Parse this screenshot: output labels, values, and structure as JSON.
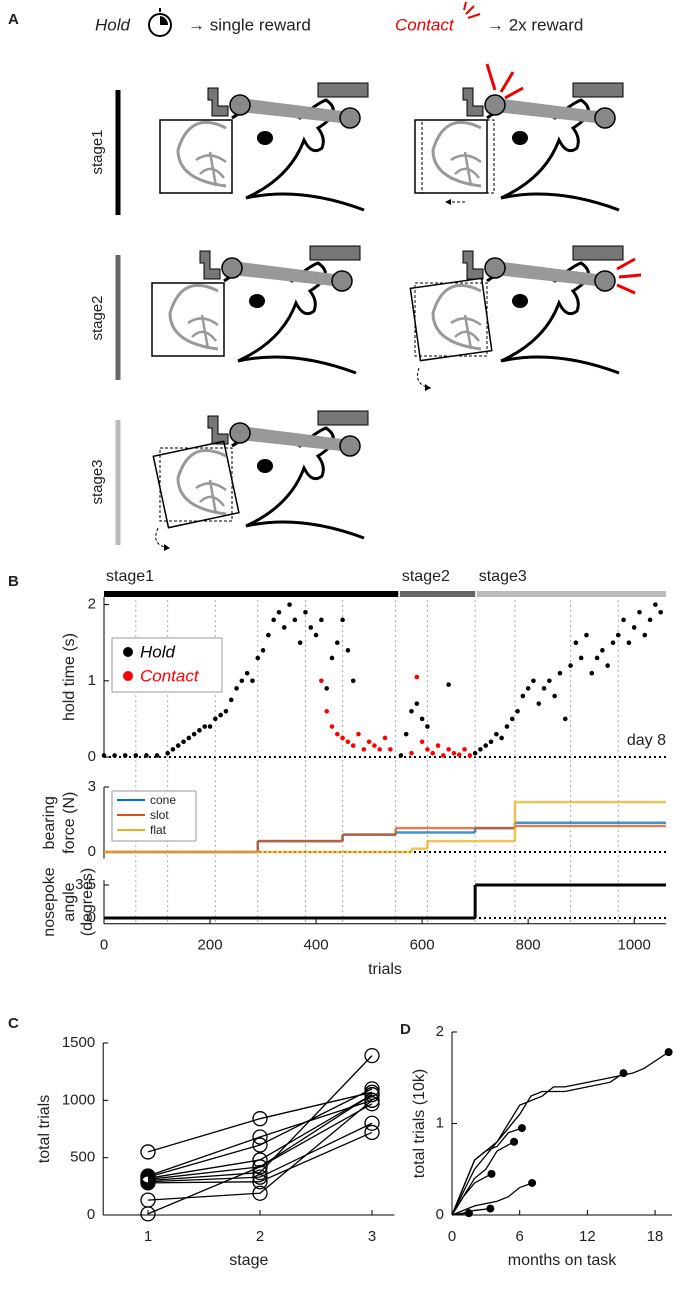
{
  "panel_labels": [
    "A",
    "B",
    "C",
    "D"
  ],
  "panel_a": {
    "hold_label": "Hold",
    "hold_text": "→ single reward",
    "contact_label": "Contact",
    "contact_text": "→ 2x reward",
    "stages": [
      "stage1",
      "stage2",
      "stage3"
    ]
  },
  "chart_data": [
    {
      "type": "scatter",
      "ylabel": [
        "hold time (s)"
      ],
      "xlim": [
        0,
        1060
      ],
      "ylim": [
        0,
        2.1
      ],
      "yticks": [
        0,
        1,
        2
      ],
      "annotation": "day 8",
      "stages": [
        {
          "name": "stage1",
          "start": 0,
          "end": 555,
          "color": "#000000"
        },
        {
          "name": "stage2",
          "start": 558,
          "end": 700,
          "color": "#666666"
        },
        {
          "name": "stage3",
          "start": 703,
          "end": 1060,
          "color": "#bbbbbb"
        }
      ],
      "vlines": [
        60,
        120,
        210,
        290,
        380,
        450,
        550,
        610,
        700,
        775,
        880,
        970
      ],
      "series": [
        {
          "name": "Hold",
          "color": "#000000",
          "x": [
            0,
            20,
            40,
            60,
            80,
            100,
            120,
            130,
            140,
            150,
            160,
            170,
            180,
            190,
            200,
            210,
            220,
            230,
            240,
            250,
            260,
            270,
            280,
            290,
            300,
            310,
            320,
            330,
            340,
            350,
            360,
            370,
            380,
            390,
            400,
            410,
            420,
            430,
            440,
            450,
            460,
            470,
            560,
            570,
            580,
            590,
            600,
            610,
            650,
            700,
            710,
            720,
            730,
            740,
            750,
            760,
            770,
            780,
            790,
            800,
            810,
            820,
            830,
            840,
            850,
            860,
            870,
            880,
            890,
            900,
            910,
            920,
            930,
            940,
            950,
            960,
            970,
            980,
            990,
            1000,
            1010,
            1020,
            1030,
            1040,
            1050
          ],
          "values": [
            0.02,
            0.02,
            0.02,
            0.02,
            0.02,
            0.02,
            0.05,
            0.1,
            0.15,
            0.2,
            0.25,
            0.3,
            0.35,
            0.4,
            0.4,
            0.5,
            0.55,
            0.6,
            0.75,
            0.9,
            1.0,
            1.1,
            1.0,
            1.3,
            1.4,
            1.6,
            1.8,
            1.9,
            1.7,
            2.0,
            1.8,
            1.5,
            1.9,
            1.7,
            1.6,
            1.8,
            0.9,
            1.3,
            1.5,
            1.8,
            1.4,
            1.0,
            0.02,
            0.3,
            0.6,
            0.7,
            0.5,
            0.4,
            0.95,
            0.05,
            0.1,
            0.15,
            0.2,
            0.3,
            0.25,
            0.4,
            0.5,
            0.6,
            0.8,
            0.9,
            1.0,
            0.7,
            0.9,
            1.0,
            0.8,
            1.1,
            0.5,
            1.2,
            1.5,
            1.3,
            1.6,
            1.1,
            1.3,
            1.4,
            1.2,
            1.5,
            1.6,
            1.8,
            1.5,
            1.7,
            1.9,
            1.6,
            1.8,
            2.0,
            1.9
          ]
        },
        {
          "name": "Contact",
          "color": "#ff0000",
          "x": [
            410,
            420,
            430,
            440,
            450,
            460,
            470,
            480,
            490,
            500,
            510,
            520,
            530,
            540,
            580,
            590,
            600,
            610,
            620,
            630,
            640,
            650,
            660,
            670,
            680,
            690
          ],
          "values": [
            1.0,
            0.6,
            0.4,
            0.3,
            0.25,
            0.2,
            0.15,
            0.3,
            0.1,
            0.2,
            0.15,
            0.1,
            0.25,
            0.1,
            0.05,
            1.05,
            0.2,
            0.1,
            0.05,
            0.15,
            0.02,
            0.1,
            0.05,
            0.03,
            0.1,
            0.02
          ]
        }
      ]
    },
    {
      "type": "step",
      "ylabel": [
        "bearing",
        "force (N)"
      ],
      "xlim": [
        0,
        1060
      ],
      "ylim": [
        -0.3,
        3
      ],
      "yticks": [
        0,
        3
      ],
      "series": [
        {
          "name": "cone",
          "color": "#0072bd",
          "x": [
            0,
            290,
            450,
            550,
            700,
            775,
            1060
          ],
          "values": [
            0,
            0.5,
            0.8,
            0.9,
            1.1,
            1.35,
            1.35
          ]
        },
        {
          "name": "slot",
          "color": "#d95319",
          "x": [
            0,
            290,
            450,
            550,
            700,
            775,
            1060
          ],
          "values": [
            0,
            0.5,
            0.8,
            1.1,
            1.1,
            1.2,
            1.2
          ]
        },
        {
          "name": "flat",
          "color": "#edb120",
          "x": [
            0,
            580,
            610,
            700,
            775,
            1060
          ],
          "values": [
            0,
            0.15,
            0.5,
            0.5,
            2.3,
            2.3
          ]
        }
      ]
    },
    {
      "type": "step",
      "ylabel": [
        "nosepoke",
        "angle",
        "(degrees)"
      ],
      "xlabel": "trials",
      "xlim": [
        0,
        1060
      ],
      "ylim": [
        -0.6,
        4
      ],
      "yticks": [
        0,
        3.5
      ],
      "xticks": [
        0,
        200,
        400,
        600,
        800,
        1000
      ],
      "series": [
        {
          "color": "#000000",
          "x": [
            0,
            700,
            1060
          ],
          "values": [
            0,
            3.5,
            3.5
          ]
        }
      ]
    },
    {
      "type": "line",
      "xlabel": "stage",
      "ylabel": [
        "total trials"
      ],
      "xlim": [
        0.6,
        3.2
      ],
      "ylim": [
        0,
        1500
      ],
      "xticks": [
        1,
        2,
        3
      ],
      "yticks": [
        0,
        500,
        1000,
        1500
      ],
      "series": [
        {
          "color": "#000000",
          "x": [
            1,
            2,
            3
          ],
          "values": [
            550,
            840,
            1070
          ]
        },
        {
          "color": "#000000",
          "x": [
            1,
            2,
            3
          ],
          "values": [
            340,
            680,
            1000
          ]
        },
        {
          "color": "#000000",
          "x": [
            1,
            2,
            3
          ],
          "values": [
            330,
            610,
            1100
          ]
        },
        {
          "color": "#000000",
          "x": [
            1,
            2,
            3
          ],
          "values": [
            320,
            480,
            1050
          ]
        },
        {
          "color": "#000000",
          "x": [
            1,
            2,
            3
          ],
          "values": [
            310,
            420,
            970
          ]
        },
        {
          "color": "#000000",
          "x": [
            1,
            2,
            3
          ],
          "values": [
            300,
            370,
            1390
          ]
        },
        {
          "color": "#000000",
          "x": [
            1,
            2,
            3
          ],
          "values": [
            290,
            330,
            800
          ]
        },
        {
          "color": "#000000",
          "x": [
            1,
            2,
            3
          ],
          "values": [
            280,
            290,
            720
          ]
        },
        {
          "color": "#000000",
          "x": [
            1,
            2,
            3
          ],
          "values": [
            130,
            190,
            1000
          ]
        },
        {
          "color": "#000000",
          "x": [
            1,
            2,
            3
          ],
          "values": [
            10,
            420,
            1050
          ]
        }
      ]
    },
    {
      "type": "line",
      "xlabel": "months on task",
      "ylabel": [
        "total trials (10k)"
      ],
      "xlim": [
        0,
        19.5
      ],
      "ylim": [
        0,
        2
      ],
      "xticks": [
        0,
        6,
        12,
        18
      ],
      "yticks": [
        0,
        1,
        2
      ],
      "series": [
        {
          "color": "#000000",
          "x": [
            0,
            2,
            4,
            6,
            8,
            9,
            10,
            12,
            14,
            16,
            17,
            19.2
          ],
          "values": [
            0,
            0.5,
            0.8,
            1.2,
            1.3,
            1.4,
            1.4,
            1.45,
            1.5,
            1.55,
            1.6,
            1.78
          ]
        },
        {
          "color": "#000000",
          "x": [
            0,
            1,
            2,
            4,
            6,
            7,
            8,
            10,
            12,
            14,
            15.2
          ],
          "values": [
            0,
            0.3,
            0.6,
            0.8,
            1.1,
            1.3,
            1.35,
            1.35,
            1.4,
            1.45,
            1.55
          ]
        },
        {
          "color": "#000000",
          "x": [
            0,
            1,
            2,
            3,
            4,
            5,
            6.2
          ],
          "values": [
            0,
            0.3,
            0.6,
            0.7,
            0.75,
            0.9,
            0.95
          ]
        },
        {
          "color": "#000000",
          "x": [
            0,
            1,
            2,
            3,
            4,
            5.5
          ],
          "values": [
            0,
            0.2,
            0.4,
            0.5,
            0.7,
            0.8
          ]
        },
        {
          "color": "#000000",
          "x": [
            0,
            1,
            2,
            3.5
          ],
          "values": [
            0,
            0.2,
            0.35,
            0.45
          ]
        },
        {
          "color": "#000000",
          "x": [
            0,
            2,
            4,
            5,
            6,
            7.1
          ],
          "values": [
            0,
            0.1,
            0.15,
            0.2,
            0.3,
            0.35
          ]
        },
        {
          "color": "#000000",
          "x": [
            0,
            1,
            2,
            3.4
          ],
          "values": [
            0,
            0.02,
            0.05,
            0.07
          ]
        },
        {
          "color": "#000000",
          "x": [
            0,
            0.5,
            1.5
          ],
          "values": [
            0,
            0.01,
            0.02
          ]
        }
      ]
    }
  ]
}
